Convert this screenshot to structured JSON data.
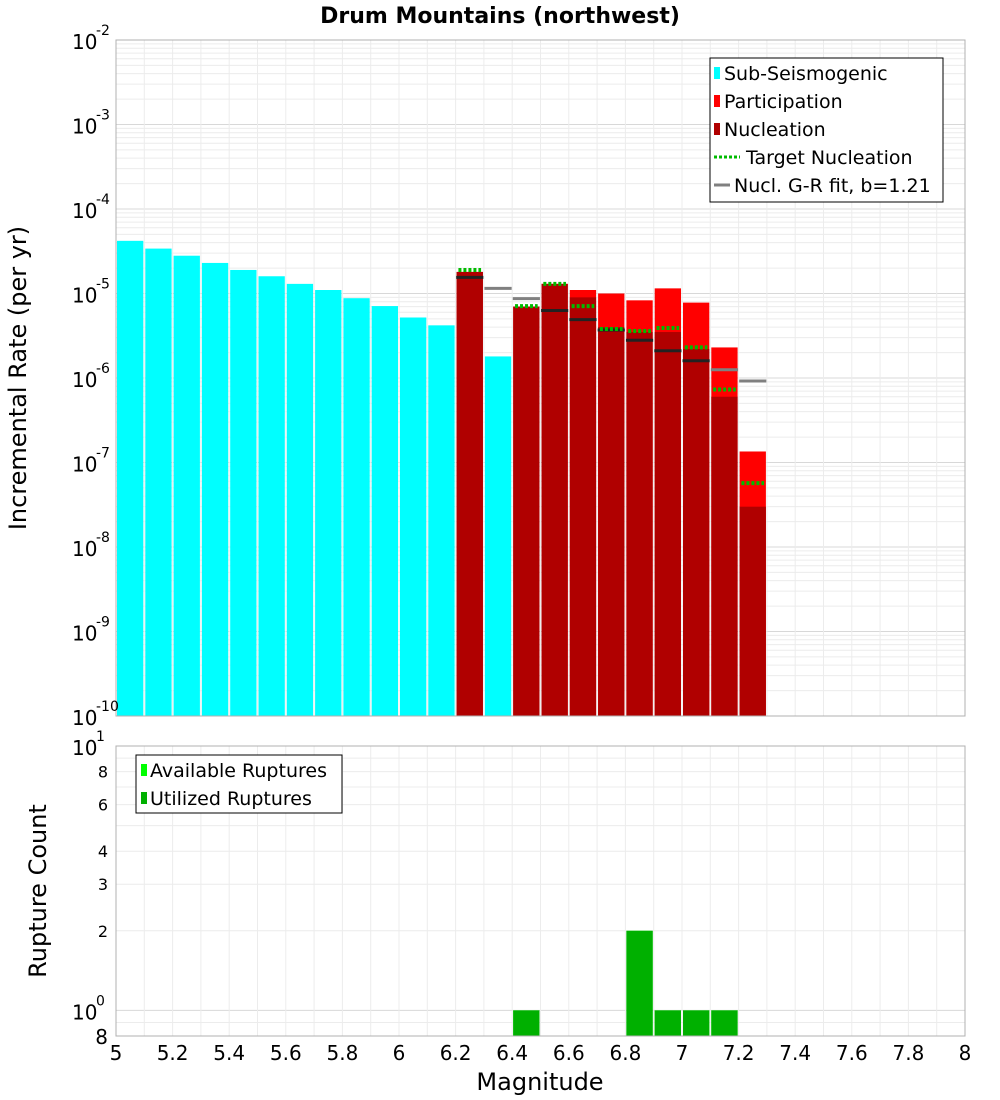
{
  "chart_data": [
    {
      "type": "bar",
      "title": "Drum Mountains (northwest)",
      "xlabel": "Magnitude",
      "ylabel": "Incremental Rate (per yr)",
      "yscale": "log",
      "xlim": [
        5,
        8
      ],
      "ylim": [
        1e-10,
        0.01
      ],
      "x_ticks": [
        "5",
        "5.2",
        "5.4",
        "5.6",
        "5.8",
        "6",
        "6.2",
        "6.4",
        "6.6",
        "6.8",
        "7",
        "7.2",
        "7.4",
        "7.6",
        "7.8",
        "8"
      ],
      "y_ticks": [
        {
          "base": "10",
          "exp": "-2",
          "value": 0.01
        },
        {
          "base": "10",
          "exp": "-3",
          "value": 0.001
        },
        {
          "base": "10",
          "exp": "-4",
          "value": 0.0001
        },
        {
          "base": "10",
          "exp": "-5",
          "value": 1e-05
        },
        {
          "base": "10",
          "exp": "-6",
          "value": 1e-06
        },
        {
          "base": "10",
          "exp": "-7",
          "value": 1e-07
        },
        {
          "base": "10",
          "exp": "-8",
          "value": 1e-08
        },
        {
          "base": "10",
          "exp": "-9",
          "value": 1e-09
        },
        {
          "base": "10",
          "exp": "-10",
          "value": 1e-10
        }
      ],
      "bin_width": 0.1,
      "series": [
        {
          "name": "Sub-Seismogenic",
          "color": "#00ffff",
          "x": [
            5.05,
            5.15,
            5.25,
            5.35,
            5.45,
            5.55,
            5.65,
            5.75,
            5.85,
            5.95,
            6.05,
            6.15,
            6.35
          ],
          "values": [
            4.2e-05,
            3.4e-05,
            2.8e-05,
            2.3e-05,
            1.9e-05,
            1.6e-05,
            1.3e-05,
            1.1e-05,
            8.8e-06,
            7.1e-06,
            5.2e-06,
            4.2e-06,
            1.8e-06
          ]
        },
        {
          "name": "Participation",
          "color": "#ff0000",
          "x": [
            6.25,
            6.45,
            6.55,
            6.65,
            6.75,
            6.85,
            6.95,
            7.05,
            7.15,
            7.25
          ],
          "values": [
            1.8e-05,
            7e-06,
            1.3e-05,
            1.1e-05,
            1e-05,
            8.3e-06,
            1.15e-05,
            7.8e-06,
            2.3e-06,
            1.35e-07
          ]
        },
        {
          "name": "Nucleation",
          "color": "#b00000",
          "x": [
            6.25,
            6.45,
            6.55,
            6.65,
            6.75,
            6.85,
            6.95,
            7.05,
            7.15,
            7.25
          ],
          "values": [
            1.8e-05,
            7e-06,
            1.3e-05,
            9e-06,
            4e-06,
            3.5e-06,
            3.5e-06,
            2.2e-06,
            6e-07,
            3e-08
          ]
        },
        {
          "name": "Target Nucleation",
          "color": "#00bb00",
          "style": "dotted",
          "x": [
            6.25,
            6.45,
            6.55,
            6.65,
            6.75,
            6.85,
            6.95,
            7.05,
            7.15,
            7.25
          ],
          "values": [
            1.9e-05,
            7.1e-06,
            1.3e-05,
            7.1e-06,
            3.8e-06,
            3.6e-06,
            3.9e-06,
            2.3e-06,
            7.3e-07,
            5.7e-08
          ]
        },
        {
          "name": "Nucl. G-R fit, b=1.21",
          "color": "#808080",
          "style": "solid",
          "x": [
            6.25,
            6.35,
            6.45,
            6.55,
            6.65,
            6.75,
            6.85,
            6.95,
            7.05,
            7.15,
            7.25
          ],
          "values": [
            1.55e-05,
            1.15e-05,
            8.7e-06,
            6.3e-06,
            4.9e-06,
            3.7e-06,
            2.8e-06,
            2.1e-06,
            1.6e-06,
            1.25e-06,
            9.2e-07
          ]
        }
      ],
      "legend": {
        "placement": "top-right",
        "entries": [
          "Sub-Seismogenic",
          "Participation",
          "Nucleation",
          "Target Nucleation",
          "Nucl. G-R fit, b=1.21"
        ]
      }
    },
    {
      "type": "bar",
      "xlabel": "Magnitude",
      "ylabel": "Rupture Count",
      "yscale": "log",
      "xlim": [
        5,
        8
      ],
      "ylim": [
        0.8,
        10
      ],
      "y_major_ticks": [
        {
          "base": "10",
          "exp": "1",
          "value": 10
        },
        {
          "base": "10",
          "exp": "0",
          "value": 1
        }
      ],
      "y_minor_ticks": [
        {
          "label": "8",
          "value": 8
        },
        {
          "label": "6",
          "value": 6
        },
        {
          "label": "4",
          "value": 4
        },
        {
          "label": "3",
          "value": 3
        },
        {
          "label": "2",
          "value": 2
        },
        {
          "label": "8",
          "value": 0.8
        }
      ],
      "bin_width": 0.1,
      "series": [
        {
          "name": "Available Ruptures",
          "color": "#00ff00",
          "x": [
            6.45,
            6.85,
            6.95,
            7.05,
            7.15
          ],
          "values": [
            1,
            2,
            1,
            1,
            1
          ]
        },
        {
          "name": "Utilized Ruptures",
          "color": "#00b000",
          "x": [
            6.45,
            6.85,
            6.95,
            7.05,
            7.15
          ],
          "values": [
            1,
            2,
            1,
            1,
            1
          ]
        }
      ],
      "legend": {
        "placement": "top-left",
        "entries": [
          "Available Ruptures",
          "Utilized Ruptures"
        ]
      }
    }
  ]
}
